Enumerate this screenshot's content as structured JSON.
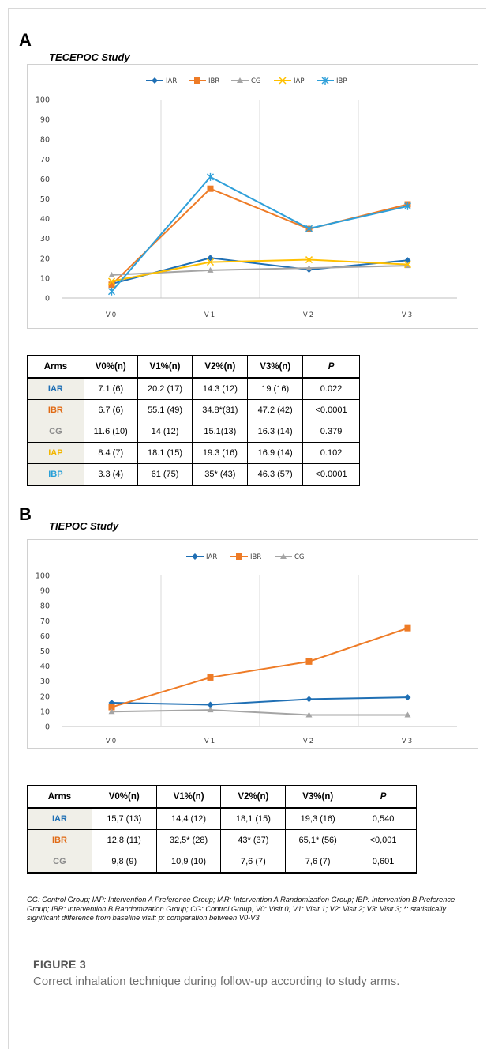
{
  "panel_a": {
    "letter": "A",
    "study": "TECEPOC Study",
    "table": {
      "headers": [
        "Arms",
        "V0%(n)",
        "V1%(n)",
        "V2%(n)",
        "V3%(n)",
        "P"
      ],
      "rows": [
        {
          "arm": "IAR",
          "color": "#1f6fb4",
          "cells": [
            "7.1 (6)",
            "20.2 (17)",
            "14.3 (12)",
            "19 (16)",
            "0.022"
          ]
        },
        {
          "arm": "IBR",
          "color": "#e06a14",
          "cells": [
            "6.7 (6)",
            "55.1 (49)",
            "34.8*(31)",
            "47.2 (42)",
            "<0.0001"
          ]
        },
        {
          "arm": "CG",
          "color": "#8c8c8c",
          "cells": [
            "11.6 (10)",
            "14 (12)",
            "15.1(13)",
            "16.3 (14)",
            "0.379"
          ]
        },
        {
          "arm": "IAP",
          "color": "#f2b600",
          "cells": [
            "8.4 (7)",
            "18.1 (15)",
            "19.3 (16)",
            "16.9 (14)",
            "0.102"
          ]
        },
        {
          "arm": "IBP",
          "color": "#2aa0d8",
          "cells": [
            "3.3 (4)",
            "61 (75)",
            "35* (43)",
            "46.3 (57)",
            "<0.0001"
          ]
        }
      ]
    }
  },
  "panel_b": {
    "letter": "B",
    "study": "TIEPOC Study",
    "table": {
      "headers": [
        "Arms",
        "V0%(n)",
        "V1%(n)",
        "V2%(n)",
        "V3%(n)",
        "P"
      ],
      "rows": [
        {
          "arm": "IAR",
          "color": "#1f6fb4",
          "cells": [
            "15,7 (13)",
            "14,4 (12)",
            "18,1 (15)",
            "19,3 (16)",
            "0,540"
          ]
        },
        {
          "arm": "IBR",
          "color": "#e06a14",
          "cells": [
            "12,8 (11)",
            "32,5* (28)",
            "43* (37)",
            "65,1* (56)",
            "<0,001"
          ]
        },
        {
          "arm": "CG",
          "color": "#8c8c8c",
          "cells": [
            "9,8 (9)",
            "10,9 (10)",
            "7,6 (7)",
            "7,6 (7)",
            "0,601"
          ]
        }
      ]
    }
  },
  "chart_data": [
    {
      "type": "line",
      "x": [
        "V0",
        "V1",
        "V2",
        "V3"
      ],
      "ylim": [
        0,
        100
      ],
      "yticks": [
        0,
        10,
        20,
        30,
        40,
        50,
        60,
        70,
        80,
        90,
        100
      ],
      "legend_position": "top-center",
      "series": [
        {
          "name": "IAR",
          "color": "#1f6fb4",
          "marker": "diamond",
          "values": [
            7.1,
            20.2,
            14.3,
            19
          ]
        },
        {
          "name": "IBR",
          "color": "#ee7b26",
          "marker": "square",
          "values": [
            6.7,
            55.1,
            34.8,
            47.2
          ]
        },
        {
          "name": "CG",
          "color": "#a5a5a5",
          "marker": "triangle",
          "values": [
            11.6,
            14,
            15.1,
            16.3
          ]
        },
        {
          "name": "IAP",
          "color": "#ffc000",
          "marker": "x",
          "values": [
            8.4,
            18.1,
            19.3,
            16.9
          ]
        },
        {
          "name": "IBP",
          "color": "#2e9fd9",
          "marker": "star",
          "values": [
            3.3,
            61,
            35,
            46.3
          ]
        }
      ]
    },
    {
      "type": "line",
      "x": [
        "V0",
        "V1",
        "V2",
        "V3"
      ],
      "ylim": [
        0,
        100
      ],
      "yticks": [
        0,
        10,
        20,
        30,
        40,
        50,
        60,
        70,
        80,
        90,
        100
      ],
      "legend_position": "top-center",
      "series": [
        {
          "name": "IAR",
          "color": "#1f6fb4",
          "marker": "diamond",
          "values": [
            15.7,
            14.4,
            18.1,
            19.3
          ]
        },
        {
          "name": "IBR",
          "color": "#ee7b26",
          "marker": "square",
          "values": [
            12.8,
            32.5,
            43,
            65.1
          ]
        },
        {
          "name": "CG",
          "color": "#a5a5a5",
          "marker": "triangle",
          "values": [
            9.8,
            10.9,
            7.6,
            7.6
          ]
        }
      ]
    }
  ],
  "footnote": "CG: Control Group; IAP: Intervention A Preference Group; IAR: Intervention A Randomization Group; IBP: Intervention B Preference Group; IBR: Intervention B Randomization Group; CG: Control Group; V0: Visit 0; V1: Visit 1; V2: Visit 2; V3: Visit 3; *: statistically significant difference from baseline visit; p: comparation between V0-V3.",
  "figure": {
    "label": "FIGURE 3",
    "caption": "Correct inhalation technique during follow-up according to study arms."
  }
}
